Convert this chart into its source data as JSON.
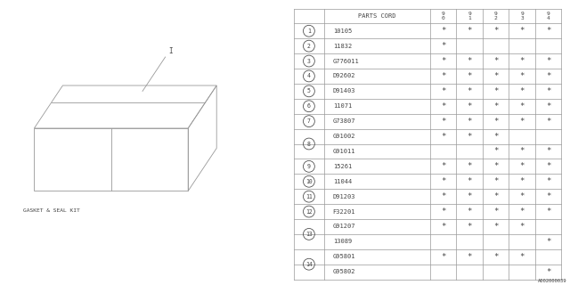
{
  "bg_color": "#ffffff",
  "label_text": "GASKET & SEAL KIT",
  "part_number_label": "A002000039",
  "rows": [
    {
      "num": "1",
      "part": "10105",
      "marks": [
        1,
        1,
        1,
        1,
        1
      ],
      "group_start": true,
      "group_size": 1
    },
    {
      "num": "2",
      "part": "11832",
      "marks": [
        1,
        0,
        0,
        0,
        0
      ],
      "group_start": true,
      "group_size": 1
    },
    {
      "num": "3",
      "part": "G776011",
      "marks": [
        1,
        1,
        1,
        1,
        1
      ],
      "group_start": true,
      "group_size": 1
    },
    {
      "num": "4",
      "part": "D92602",
      "marks": [
        1,
        1,
        1,
        1,
        1
      ],
      "group_start": true,
      "group_size": 1
    },
    {
      "num": "5",
      "part": "D91403",
      "marks": [
        1,
        1,
        1,
        1,
        1
      ],
      "group_start": true,
      "group_size": 1
    },
    {
      "num": "6",
      "part": "11071",
      "marks": [
        1,
        1,
        1,
        1,
        1
      ],
      "group_start": true,
      "group_size": 1
    },
    {
      "num": "7",
      "part": "G73807",
      "marks": [
        1,
        1,
        1,
        1,
        1
      ],
      "group_start": true,
      "group_size": 1
    },
    {
      "num": "8",
      "part": "G91002",
      "marks": [
        1,
        1,
        1,
        0,
        0
      ],
      "group_start": true,
      "group_size": 2
    },
    {
      "num": "8",
      "part": "G91011",
      "marks": [
        0,
        0,
        1,
        1,
        1
      ],
      "group_start": false,
      "group_size": 2
    },
    {
      "num": "9",
      "part": "15261",
      "marks": [
        1,
        1,
        1,
        1,
        1
      ],
      "group_start": true,
      "group_size": 1
    },
    {
      "num": "10",
      "part": "11044",
      "marks": [
        1,
        1,
        1,
        1,
        1
      ],
      "group_start": true,
      "group_size": 1
    },
    {
      "num": "11",
      "part": "D91203",
      "marks": [
        1,
        1,
        1,
        1,
        1
      ],
      "group_start": true,
      "group_size": 1
    },
    {
      "num": "12",
      "part": "F32201",
      "marks": [
        1,
        1,
        1,
        1,
        1
      ],
      "group_start": true,
      "group_size": 1
    },
    {
      "num": "13",
      "part": "G91207",
      "marks": [
        1,
        1,
        1,
        1,
        0
      ],
      "group_start": true,
      "group_size": 2
    },
    {
      "num": "13",
      "part": "13089",
      "marks": [
        0,
        0,
        0,
        0,
        1
      ],
      "group_start": false,
      "group_size": 2
    },
    {
      "num": "14",
      "part": "G95801",
      "marks": [
        1,
        1,
        1,
        1,
        0
      ],
      "group_start": true,
      "group_size": 2
    },
    {
      "num": "14",
      "part": "G95802",
      "marks": [
        0,
        0,
        0,
        0,
        1
      ],
      "group_start": false,
      "group_size": 2
    }
  ],
  "line_color": "#999999",
  "text_color": "#444444",
  "font_size": 5.0
}
